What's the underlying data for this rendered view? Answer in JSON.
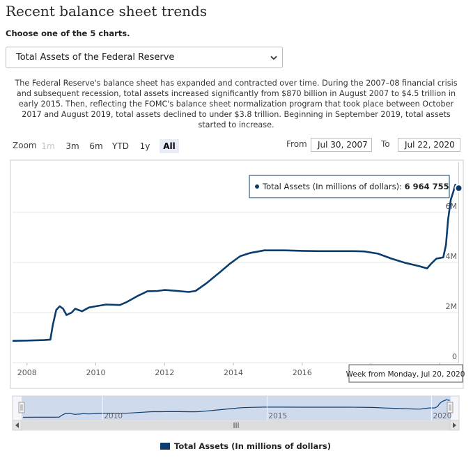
{
  "page": {
    "title": "Recent balance sheet trends",
    "subtitle": "Choose one of the 5 charts.",
    "selected_chart": "Total Assets of the Federal Reserve",
    "description": "The Federal Reserve's balance sheet has expanded and contracted over time. During the 2007–08 financial crisis and subsequent recession, total assets increased significantly from $870 billion in August 2007 to $4.5 trillion in early 2015. Then, reflecting the FOMC's balance sheet normalization program that took place between October 2017 and August 2019, total assets declined to under $3.8 trillion. Beginning in September 2019, total assets started to increase."
  },
  "zoom": {
    "label": "Zoom",
    "buttons": [
      "1m",
      "3m",
      "6m",
      "YTD",
      "1y",
      "All"
    ],
    "disabled": "1m",
    "active": "All"
  },
  "range": {
    "from_label": "From",
    "from_value": "Jul 30, 2007",
    "to_label": "To",
    "to_value": "Jul 22, 2020"
  },
  "tooltip": {
    "series": "Total Assets (In millions of dollars)",
    "separator": ": ",
    "value": "6 964 755",
    "date_label": "Week from Monday, Jul 20, 2020"
  },
  "colors": {
    "series": "#0a3d6e",
    "navigator_fill": "#c6d3ea",
    "active_zoom": "#e6ebf5"
  },
  "navigator_labels": [
    "2010",
    "2015",
    "2020"
  ],
  "chart_data": {
    "type": "line",
    "title": "",
    "xlabel": "",
    "ylabel": "",
    "xlim": [
      2007.58,
      2020.56
    ],
    "ylim": [
      0,
      8000000
    ],
    "x_ticks": [
      "2008",
      "2010",
      "2012",
      "2014",
      "2016",
      "2018",
      "2020"
    ],
    "y_ticks": [
      {
        "value": 0,
        "label": "0"
      },
      {
        "value": 2000000,
        "label": "2M"
      },
      {
        "value": 4000000,
        "label": "4M"
      },
      {
        "value": 6000000,
        "label": "6M"
      }
    ],
    "grid": "horizontal",
    "legend": "bottom-center",
    "series": [
      {
        "name": "Total Assets (In millions of dollars)",
        "points": [
          [
            2007.58,
            870000
          ],
          [
            2008.0,
            880000
          ],
          [
            2008.5,
            900000
          ],
          [
            2008.68,
            920000
          ],
          [
            2008.75,
            1500000
          ],
          [
            2008.85,
            2100000
          ],
          [
            2008.95,
            2250000
          ],
          [
            2009.05,
            2150000
          ],
          [
            2009.15,
            1900000
          ],
          [
            2009.3,
            2000000
          ],
          [
            2009.4,
            2150000
          ],
          [
            2009.6,
            2050000
          ],
          [
            2009.8,
            2200000
          ],
          [
            2010.0,
            2250000
          ],
          [
            2010.3,
            2320000
          ],
          [
            2010.7,
            2300000
          ],
          [
            2010.9,
            2420000
          ],
          [
            2011.2,
            2650000
          ],
          [
            2011.5,
            2850000
          ],
          [
            2011.8,
            2860000
          ],
          [
            2012.0,
            2900000
          ],
          [
            2012.3,
            2870000
          ],
          [
            2012.7,
            2820000
          ],
          [
            2012.9,
            2860000
          ],
          [
            2013.2,
            3150000
          ],
          [
            2013.6,
            3600000
          ],
          [
            2013.9,
            3950000
          ],
          [
            2014.2,
            4250000
          ],
          [
            2014.5,
            4380000
          ],
          [
            2014.9,
            4480000
          ],
          [
            2015.5,
            4480000
          ],
          [
            2016.0,
            4460000
          ],
          [
            2016.5,
            4450000
          ],
          [
            2017.0,
            4450000
          ],
          [
            2017.5,
            4450000
          ],
          [
            2017.8,
            4440000
          ],
          [
            2018.2,
            4350000
          ],
          [
            2018.6,
            4150000
          ],
          [
            2019.0,
            3980000
          ],
          [
            2019.4,
            3850000
          ],
          [
            2019.63,
            3760000
          ],
          [
            2019.75,
            3950000
          ],
          [
            2019.9,
            4150000
          ],
          [
            2020.1,
            4200000
          ],
          [
            2020.18,
            4700000
          ],
          [
            2020.24,
            5700000
          ],
          [
            2020.32,
            6500000
          ],
          [
            2020.4,
            6850000
          ],
          [
            2020.45,
            7100000
          ],
          [
            2020.49,
            7000000
          ],
          [
            2020.52,
            6900000
          ],
          [
            2020.55,
            6964755
          ]
        ]
      }
    ]
  }
}
